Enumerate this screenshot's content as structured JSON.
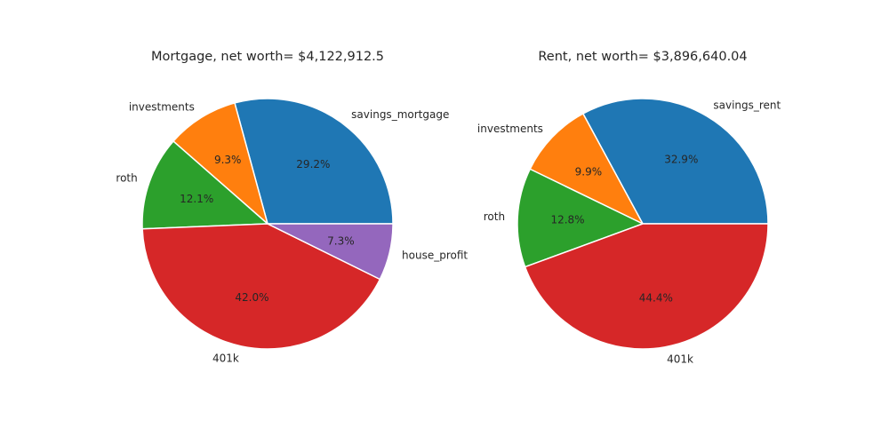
{
  "chart_data": [
    {
      "type": "pie",
      "title": "Mortgage, net worth= $4,122,912.5",
      "categories": [
        "savings_mortgage",
        "investments",
        "roth",
        "401k",
        "house_profit"
      ],
      "values": [
        29.2,
        9.3,
        12.1,
        42.0,
        7.3
      ],
      "value_labels": [
        "29.2%",
        "9.3%",
        "12.1%",
        "42.0%",
        "7.3%"
      ],
      "colors": [
        "#1f77b4",
        "#ff7f0e",
        "#2ca02c",
        "#d62728",
        "#9467bd"
      ],
      "start_angle_deg": 0,
      "direction": "counterclockwise",
      "legend": "none"
    },
    {
      "type": "pie",
      "title": "Rent, net worth= $3,896,640.04",
      "categories": [
        "savings_rent",
        "investments",
        "roth",
        "401k"
      ],
      "values": [
        32.9,
        9.9,
        12.8,
        44.4
      ],
      "value_labels": [
        "32.9%",
        "9.9%",
        "12.8%",
        "44.4%"
      ],
      "colors": [
        "#1f77b4",
        "#ff7f0e",
        "#2ca02c",
        "#d62728"
      ],
      "start_angle_deg": 0,
      "direction": "counterclockwise",
      "legend": "none"
    }
  ]
}
